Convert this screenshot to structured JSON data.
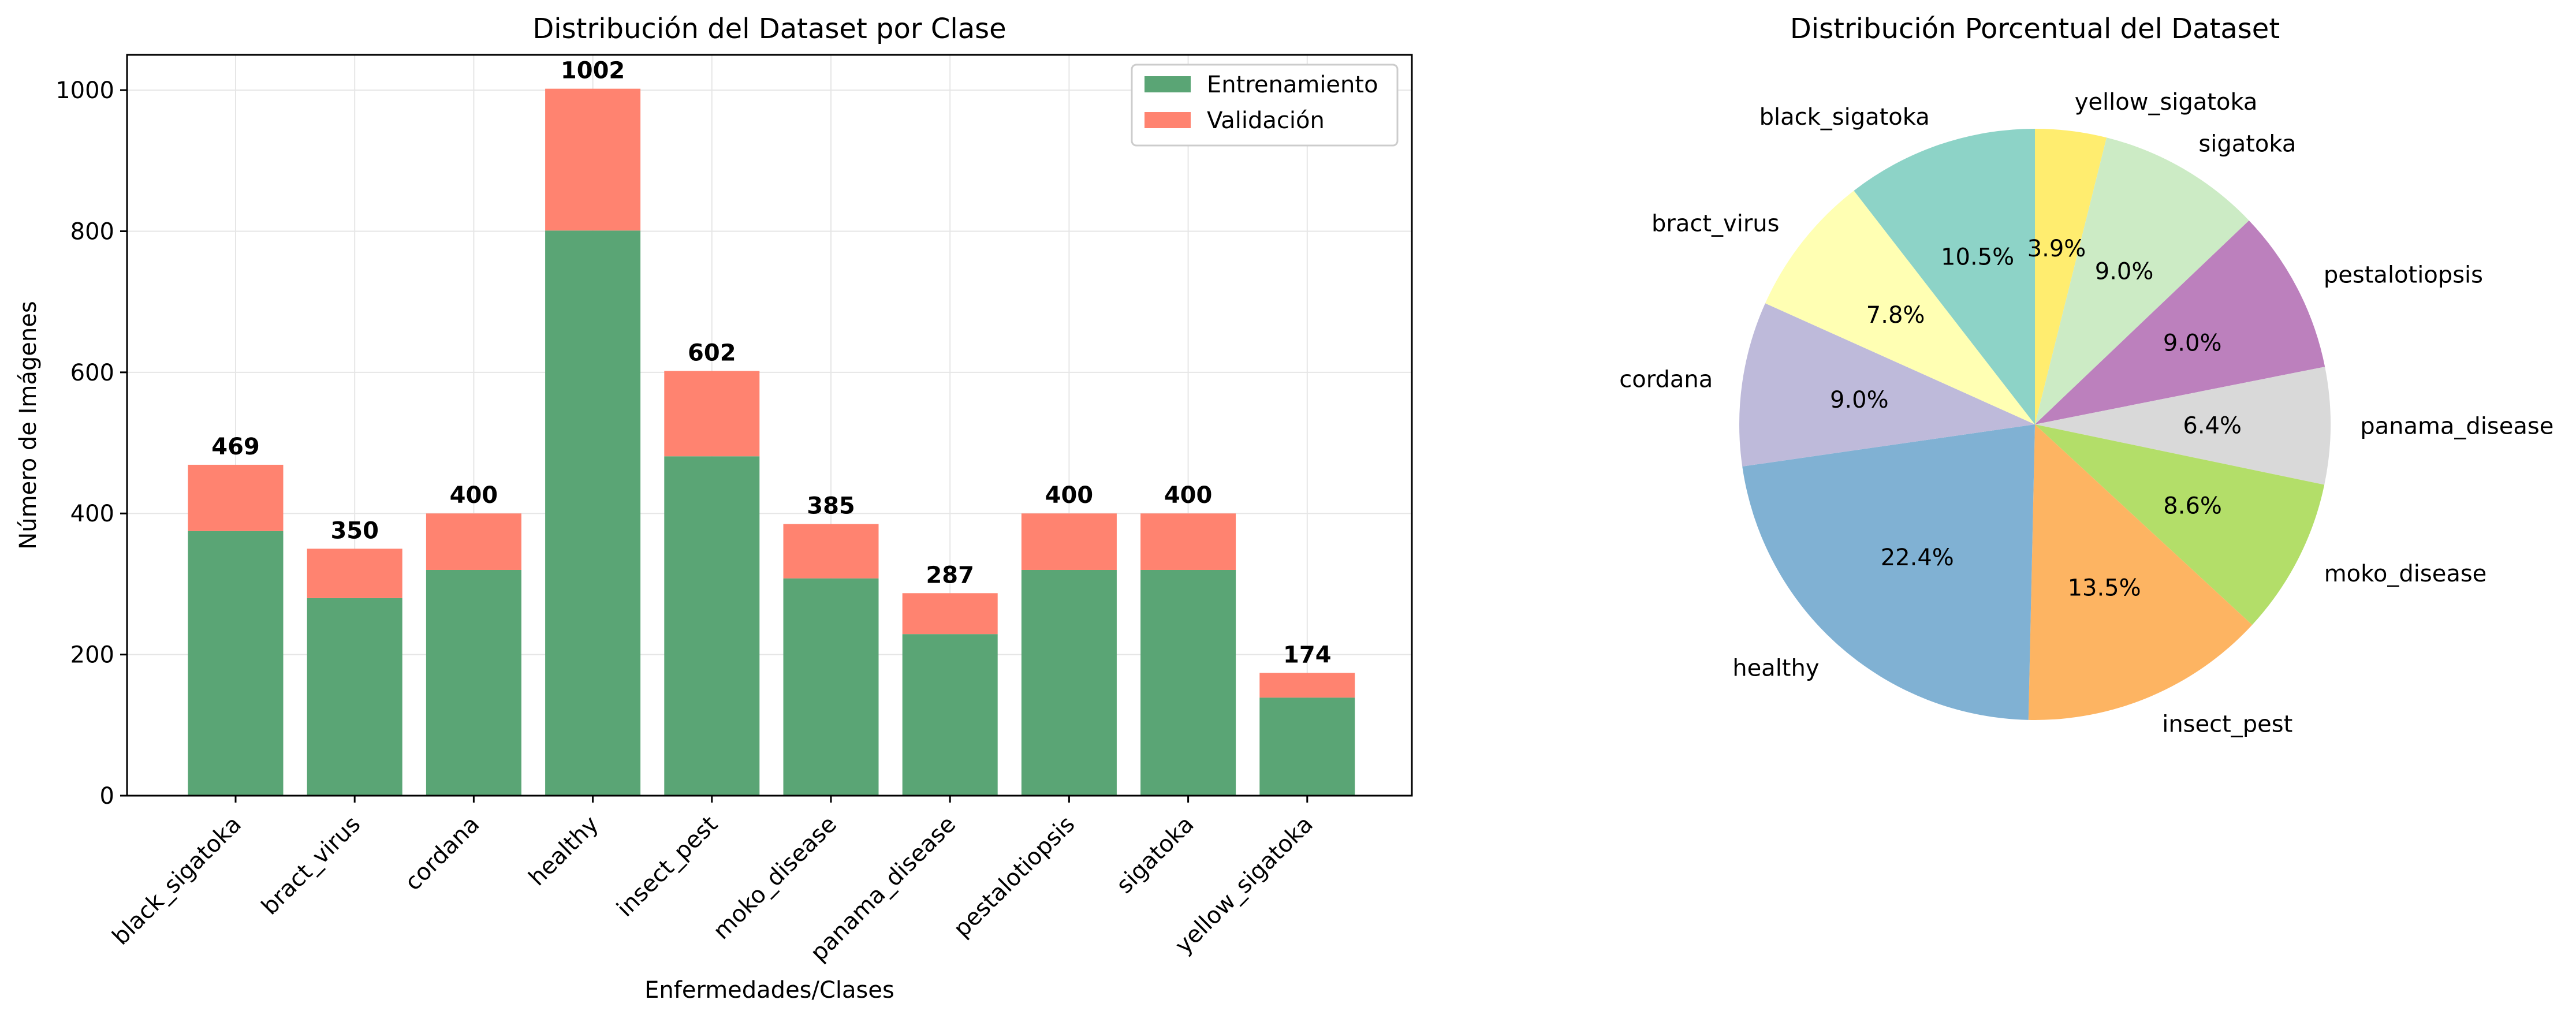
{
  "chart_data": [
    {
      "type": "bar",
      "stacked": true,
      "title": "Distribución del Dataset por Clase",
      "xlabel": "Enfermedades/Clases",
      "ylabel": "Número de Imágenes",
      "ylim": [
        0,
        1050
      ],
      "yticks": [
        "0",
        "200",
        "400",
        "600",
        "800",
        "1000"
      ],
      "categories": [
        "black_sigatoka",
        "bract_virus",
        "cordana",
        "healthy",
        "insect_pest",
        "moko_disease",
        "panama_disease",
        "pestalotiopsis",
        "sigatoka",
        "yellow_sigatoka"
      ],
      "series": [
        {
          "name": "Entrenamiento",
          "color": "#5aa575",
          "values": [
            375,
            280,
            320,
            801,
            481,
            308,
            229,
            320,
            320,
            139
          ]
        },
        {
          "name": "Validación",
          "color": "#ff8370",
          "values": [
            94,
            70,
            80,
            201,
            121,
            77,
            58,
            80,
            80,
            35
          ]
        }
      ],
      "totals": [
        "469",
        "350",
        "400",
        "1002",
        "602",
        "385",
        "287",
        "400",
        "400",
        "174"
      ],
      "grid": true,
      "legend": "top-right"
    },
    {
      "type": "pie",
      "title": "Distribución Porcentual del Dataset",
      "labels": [
        "yellow_sigatoka",
        "sigatoka",
        "pestalotiopsis",
        "panama_disease",
        "moko_disease",
        "insect_pest",
        "healthy",
        "cordana",
        "bract_virus",
        "black_sigatoka"
      ],
      "values": [
        3.9,
        9.0,
        9.0,
        6.4,
        8.6,
        13.5,
        22.4,
        9.0,
        7.8,
        10.5
      ],
      "pct_labels": [
        "3.9%",
        "9.0%",
        "9.0%",
        "6.4%",
        "8.6%",
        "13.5%",
        "22.4%",
        "9.0%",
        "7.8%",
        "10.5%"
      ],
      "colors": [
        "#ffed6f",
        "#ccebc5",
        "#bc80bd",
        "#d9d9d9",
        "#b3de69",
        "#fdb462",
        "#80b1d3",
        "#bebada",
        "#ffffb3",
        "#8dd3c7"
      ],
      "direction": "clockwise",
      "start": "top"
    }
  ]
}
